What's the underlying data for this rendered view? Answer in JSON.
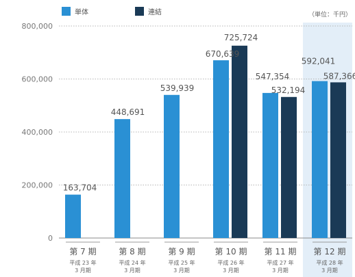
{
  "chart_data": {
    "type": "bar",
    "categories": [
      "第 7 期",
      "第 8 期",
      "第 9 期",
      "第 10 期",
      "第 11 期",
      "第 12 期"
    ],
    "category_sublabels": [
      [
        "平成 23 年",
        "3 月期"
      ],
      [
        "平成 24 年",
        "3 月期"
      ],
      [
        "平成 25 年",
        "3 月期"
      ],
      [
        "平成 26 年",
        "3 月期"
      ],
      [
        "平成 27 年",
        "3 月期"
      ],
      [
        "平成 28 年",
        "3 月期"
      ]
    ],
    "series": [
      {
        "name": "単体",
        "color": "#2a90d4",
        "values": [
          163704,
          448691,
          539939,
          670639,
          547354,
          592041
        ]
      },
      {
        "name": "連結",
        "color": "#1a3a56",
        "values": [
          null,
          null,
          null,
          725724,
          532194,
          587366
        ]
      }
    ],
    "data_labels": [
      [
        "163,704",
        "448,691",
        "539,939",
        "670,639",
        "547,354",
        "592,041"
      ],
      [
        null,
        null,
        null,
        "725,724",
        "532,194",
        "587,366"
      ]
    ],
    "unit_label": "（単位：千円）",
    "yticks": [
      0,
      200000,
      400000,
      600000,
      800000
    ],
    "ytick_labels": [
      "0",
      "200,000",
      "400,000",
      "600,000",
      "800,000"
    ],
    "ylim": [
      0,
      800000
    ],
    "highlight_category": "第 12 期",
    "highlight_color": "#e3eef8",
    "legend_position": "top-left",
    "grid": "horizontal dotted"
  }
}
